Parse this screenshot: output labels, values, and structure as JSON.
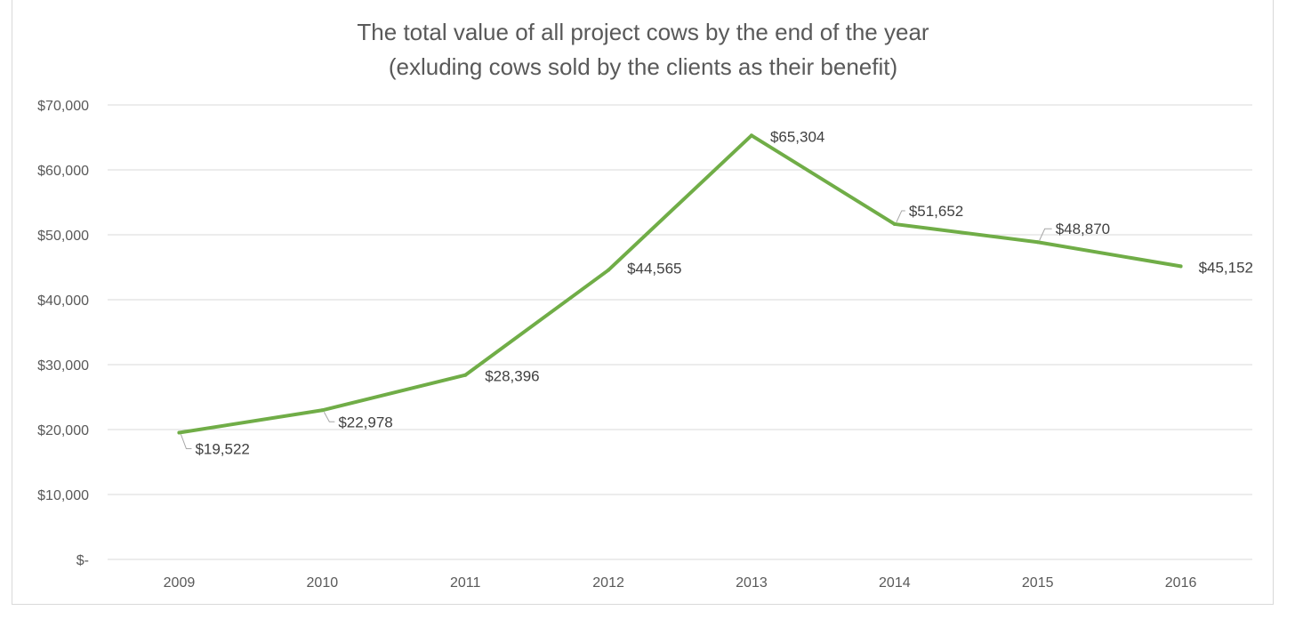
{
  "chart_data": {
    "type": "line",
    "title_lines": [
      "The total value of all project cows by the end of the year",
      "(exluding cows sold by the clients as their benefit)"
    ],
    "categories": [
      "2009",
      "2010",
      "2011",
      "2012",
      "2013",
      "2014",
      "2015",
      "2016"
    ],
    "series": [
      {
        "name": "Total value",
        "values": [
          19522,
          22978,
          28396,
          44565,
          65304,
          51652,
          48870,
          45152
        ],
        "data_labels": [
          "$19,522",
          "$22,978",
          "$28,396",
          "$44,565",
          "$65,304",
          "$51,652",
          "$48,870",
          "$45,152"
        ],
        "color": "#70ad47"
      }
    ],
    "y_ticks": [
      0,
      10000,
      20000,
      30000,
      40000,
      50000,
      60000,
      70000
    ],
    "y_tick_labels": [
      "$-",
      "$10,000",
      "$20,000",
      "$30,000",
      "$40,000",
      "$50,000",
      "$60,000",
      "$70,000"
    ],
    "ylim": [
      0,
      70000
    ],
    "xlabel": "",
    "ylabel": "",
    "grid": true,
    "legend": "none"
  }
}
